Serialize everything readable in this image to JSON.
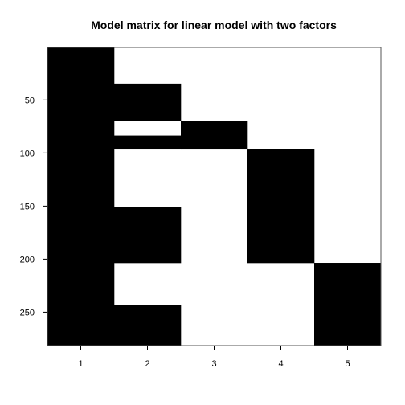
{
  "chart_data": {
    "type": "heatmap",
    "title": "Model matrix for linear model with two factors",
    "xlabel": "",
    "ylabel": "",
    "x_ticks": [
      1,
      2,
      3,
      4,
      5
    ],
    "y_ticks": [
      50,
      100,
      150,
      200,
      250
    ],
    "xlim": [
      0.5,
      5.5
    ],
    "ylim": [
      0.5,
      281.5
    ],
    "y_reversed": true,
    "grid": false,
    "colors": {
      "zero": "#ffffff",
      "one": "#000000"
    },
    "filled_cells": [
      {
        "column": 1,
        "row_from": 1,
        "row_to": 281
      },
      {
        "column": 2,
        "row_from": 35,
        "row_to": 69
      },
      {
        "column": 2,
        "row_from": 84,
        "row_to": 96
      },
      {
        "column": 2,
        "row_from": 151,
        "row_to": 203
      },
      {
        "column": 2,
        "row_from": 244,
        "row_to": 281
      },
      {
        "column": 3,
        "row_from": 70,
        "row_to": 96
      },
      {
        "column": 4,
        "row_from": 97,
        "row_to": 203
      },
      {
        "column": 5,
        "row_from": 204,
        "row_to": 281
      }
    ]
  }
}
